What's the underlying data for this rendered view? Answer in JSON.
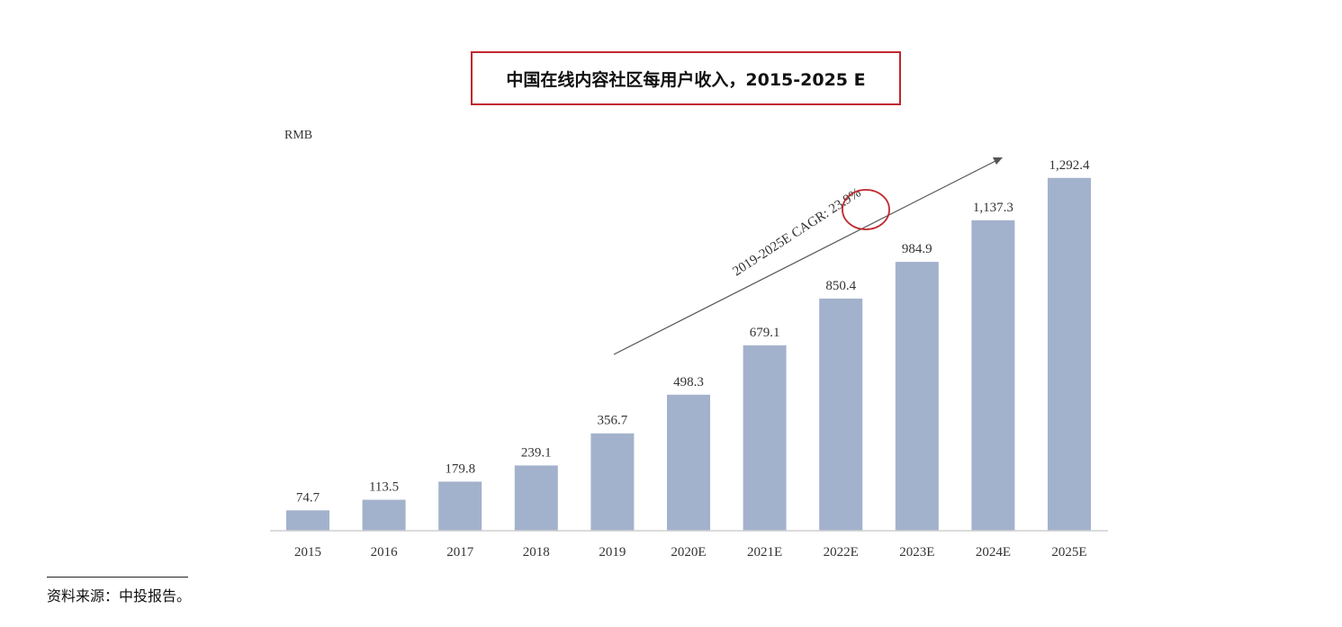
{
  "chart_data": {
    "type": "bar",
    "title": "中国在线内容社区每用户收入，2015-2025 E",
    "unit_label": "RMB",
    "categories": [
      "2015",
      "2016",
      "2017",
      "2018",
      "2019",
      "2020E",
      "2021E",
      "2022E",
      "2023E",
      "2024E",
      "2025E"
    ],
    "values": [
      74.7,
      113.5,
      179.8,
      239.1,
      356.7,
      498.3,
      679.1,
      850.4,
      984.9,
      1137.3,
      1292.4
    ],
    "value_labels": [
      "74.7",
      "113.5",
      "179.8",
      "239.1",
      "356.7",
      "498.3",
      "679.1",
      "850.4",
      "984.9",
      "1,137.3",
      "1,292.4"
    ],
    "annotation": "2019-2025E CAGR: 23.9%",
    "bar_color": "#a3b2cc",
    "highlight_color": "#c0272d",
    "ylim": [
      0,
      1400
    ],
    "grid": false
  },
  "footer": {
    "source": "资料来源：中投报告。"
  }
}
